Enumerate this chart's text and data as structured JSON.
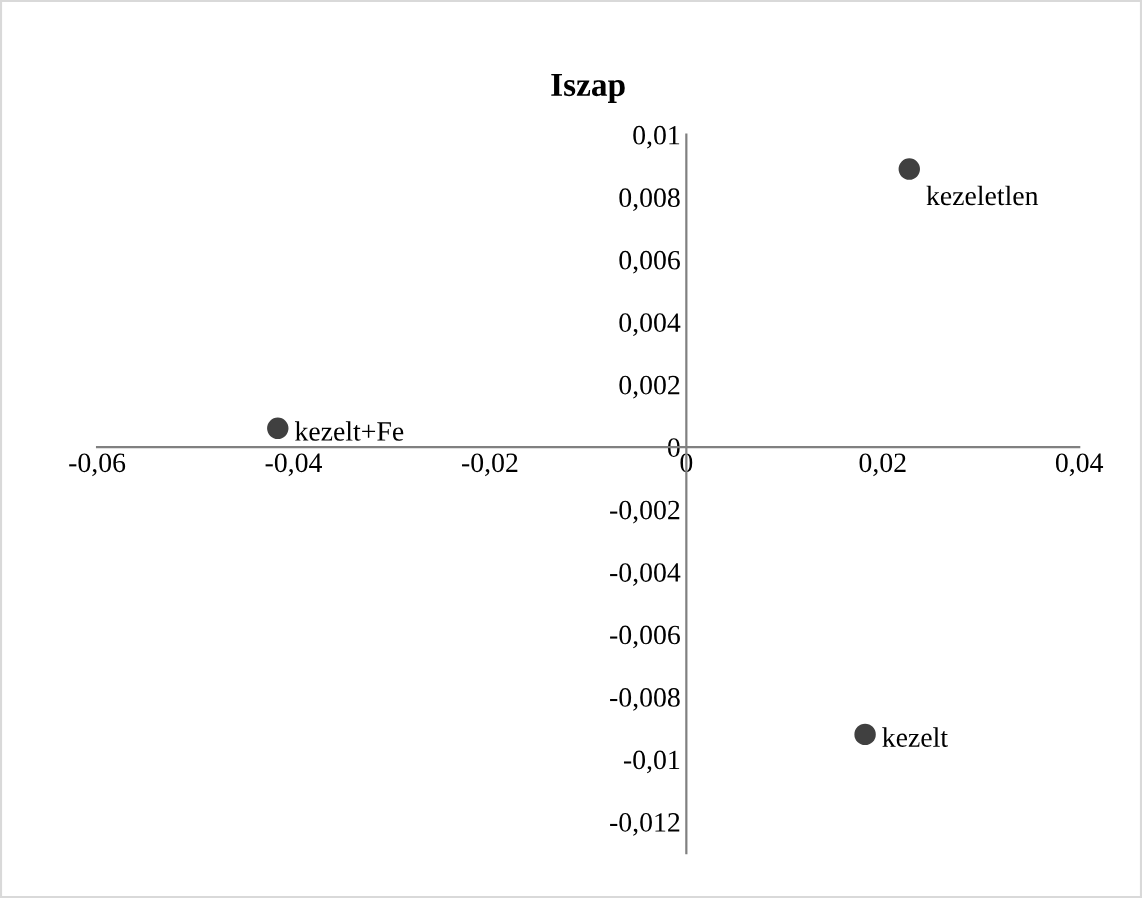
{
  "chart_data": {
    "type": "scatter",
    "title": "Iszap",
    "x": [
      0.0227,
      -0.0416,
      0.0182
    ],
    "series": [
      {
        "color": "#404040",
        "values": [
          0.0089,
          0.0006,
          -0.0092
        ]
      }
    ],
    "annotations": [
      {
        "text": "kezeletlen",
        "x": 0.0227,
        "y": 0.0089
      },
      {
        "text": "kezelt+Fe",
        "x": -0.0416,
        "y": 0.0006
      },
      {
        "text": "kezelt",
        "x": 0.0182,
        "y": -0.0092
      }
    ],
    "xlim": [
      -0.06,
      0.04
    ],
    "xticks": [
      {
        "value": -0.06,
        "label": "-0,06"
      },
      {
        "value": -0.04,
        "label": "-0,04"
      },
      {
        "value": -0.02,
        "label": "-0,02"
      },
      {
        "value": 0,
        "label": "0"
      },
      {
        "value": 0.02,
        "label": "0,02"
      },
      {
        "value": 0.04,
        "label": "0,04"
      }
    ],
    "ylim": [
      -0.013,
      0.01
    ],
    "yticks": [
      {
        "value": 0.01,
        "label": "0,01"
      },
      {
        "value": 0.008,
        "label": "0,008"
      },
      {
        "value": 0.006,
        "label": "0,006"
      },
      {
        "value": 0.004,
        "label": "0,004"
      },
      {
        "value": 0.002,
        "label": "0,002"
      },
      {
        "value": 0,
        "label": "0"
      },
      {
        "value": -0.002,
        "label": "-0,002"
      },
      {
        "value": -0.004,
        "label": "-0,004"
      },
      {
        "value": -0.006,
        "label": "-0,006"
      },
      {
        "value": -0.008,
        "label": "-0,008"
      },
      {
        "value": -0.01,
        "label": "-0,01"
      },
      {
        "value": -0.012,
        "label": "-0,012"
      }
    ],
    "marker": "circle",
    "grid": false
  }
}
